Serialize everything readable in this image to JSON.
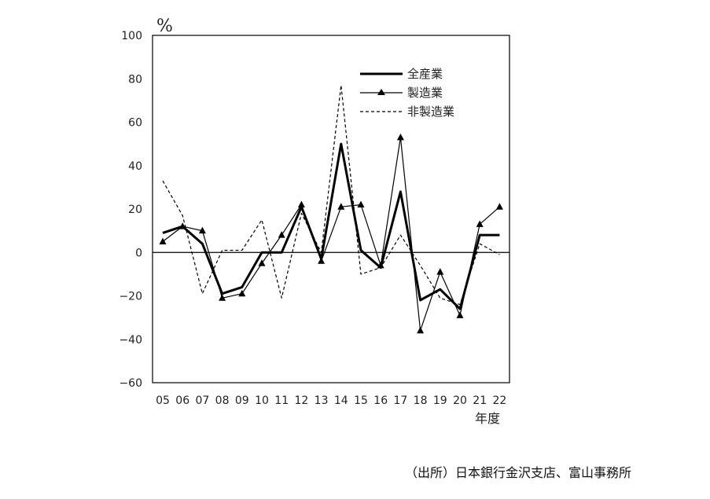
{
  "chart_data": {
    "type": "line",
    "title": "",
    "ylabel": "%",
    "xlabel": "年度",
    "ylim": [
      -60,
      100
    ],
    "yticks": [
      100,
      80,
      60,
      40,
      20,
      0,
      -20,
      -40,
      -60
    ],
    "yticklabels": [
      "100",
      "80",
      "60",
      "40",
      "20",
      "0",
      "−20",
      "−40",
      "−60"
    ],
    "categories": [
      "05",
      "06",
      "07",
      "08",
      "09",
      "10",
      "11",
      "12",
      "13",
      "14",
      "15",
      "16",
      "17",
      "18",
      "19",
      "20",
      "21",
      "22"
    ],
    "series": [
      {
        "name": "全産業",
        "style": "thick-solid",
        "values": [
          9,
          12,
          4,
          -19,
          -16,
          0,
          0,
          21,
          -3,
          50,
          1,
          -7,
          28,
          -22,
          -17,
          -26,
          8,
          8
        ]
      },
      {
        "name": "製造業",
        "style": "solid-triangle",
        "values": [
          5,
          12,
          10,
          -21,
          -19,
          -5,
          8,
          22,
          -4,
          21,
          22,
          -6,
          53,
          -36,
          -9,
          -29,
          13,
          21
        ]
      },
      {
        "name": "非製造業",
        "style": "dashed",
        "values": [
          33,
          17,
          -19,
          1,
          1,
          15,
          -21,
          18,
          0,
          77,
          -10,
          -7,
          8,
          -6,
          -21,
          -24,
          4,
          -1
        ]
      }
    ],
    "legend_position": "top-right"
  },
  "source": "（出所）日本銀行金沢支店、富山事務所"
}
